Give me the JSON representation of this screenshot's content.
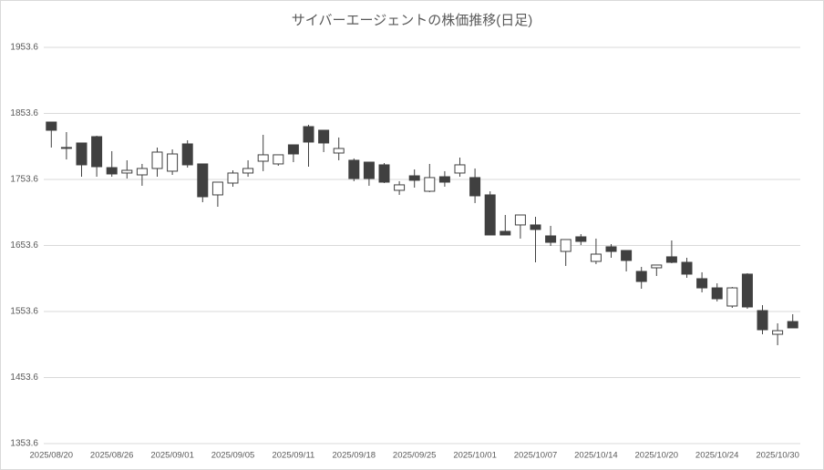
{
  "chart_data": {
    "type": "candlestick",
    "title": "サイバーエージェントの株価推移(日足)",
    "categories": [
      "2025/08/20",
      null,
      null,
      null,
      "2025/08/26",
      null,
      null,
      null,
      "2025/09/01",
      null,
      null,
      null,
      "2025/09/05",
      null,
      null,
      null,
      "2025/09/11",
      null,
      null,
      null,
      "2025/09/18",
      null,
      null,
      null,
      "2025/09/25",
      null,
      null,
      null,
      "2025/10/01",
      null,
      null,
      null,
      "2025/10/07",
      null,
      null,
      null,
      "2025/10/14",
      null,
      null,
      null,
      "2025/10/20",
      null,
      null,
      null,
      "2025/10/24",
      null,
      null,
      null,
      "2025/10/30",
      null
    ],
    "open": [
      1840.5,
      1802.0,
      1808.8,
      1818.4,
      1771.5,
      1763.3,
      1760.5,
      1770.2,
      1766.1,
      1807.4,
      1777.1,
      1730.2,
      1748.1,
      1763.3,
      1781.2,
      1777.1,
      1806.0,
      1833.6,
      1828.1,
      1793.6,
      1782.6,
      1779.8,
      1775.7,
      1737.1,
      1759.1,
      1735.7,
      1757.7,
      1763.3,
      1756.4,
      1730.2,
      1675.0,
      1684.7,
      1684.7,
      1668.1,
      1644.6,
      1666.7,
      1629.5,
      1651.6,
      1646.0,
      1614.3,
      1619.8,
      1636.4,
      1628.1,
      1603.3,
      1589.4,
      1561.9,
      1610.2,
      1555.0,
      1519.1,
      1538.4
    ],
    "high": [
      1840.5,
      1825.3,
      1808.8,
      1819.8,
      1796.4,
      1782.6,
      1777.1,
      1801.9,
      1799.1,
      1812.9,
      1777.1,
      1749.5,
      1767.4,
      1782.6,
      1821.2,
      1790.9,
      1806.0,
      1836.4,
      1828.1,
      1817.1,
      1785.4,
      1779.8,
      1778.5,
      1750.9,
      1768.8,
      1777.1,
      1766.1,
      1786.7,
      1770.2,
      1735.7,
      1699.8,
      1699.8,
      1697.1,
      1683.3,
      1662.6,
      1670.8,
      1664.0,
      1655.7,
      1646.0,
      1621.2,
      1624.0,
      1661.2,
      1635.0,
      1613.0,
      1596.3,
      1590.8,
      1611.6,
      1563.3,
      1535.7,
      1549.5
    ],
    "low": [
      1801.9,
      1783.9,
      1757.7,
      1757.7,
      1757.7,
      1755.0,
      1744.0,
      1757.7,
      1760.5,
      1771.5,
      1719.1,
      1712.2,
      1742.6,
      1757.7,
      1766.1,
      1774.3,
      1779.8,
      1772.9,
      1795.0,
      1782.6,
      1750.9,
      1744.0,
      1748.1,
      1730.2,
      1741.2,
      1734.3,
      1742.6,
      1757.7,
      1717.8,
      1669.5,
      1669.5,
      1664.0,
      1628.1,
      1652.9,
      1622.6,
      1654.3,
      1625.4,
      1635.0,
      1614.3,
      1588.1,
      1607.4,
      1626.7,
      1604.6,
      1582.6,
      1568.8,
      1559.1,
      1557.7,
      1519.1,
      1502.6,
      1528.8
    ],
    "close": [
      1828.1,
      1801.0,
      1775.7,
      1772.9,
      1761.9,
      1767.4,
      1770.2,
      1795.0,
      1792.2,
      1775.7,
      1727.4,
      1749.5,
      1763.3,
      1770.2,
      1790.9,
      1790.9,
      1792.2,
      1810.2,
      1808.8,
      1800.5,
      1755.0,
      1755.0,
      1749.5,
      1745.4,
      1752.3,
      1756.4,
      1749.5,
      1775.7,
      1728.8,
      1669.5,
      1669.5,
      1699.8,
      1677.8,
      1658.4,
      1662.6,
      1659.8,
      1640.5,
      1644.6,
      1630.9,
      1599.1,
      1624.0,
      1628.1,
      1610.2,
      1589.4,
      1572.9,
      1589.4,
      1560.5,
      1526.0,
      1524.6,
      1528.8
    ],
    "up_color": "#ffffff",
    "down_color": "#404040",
    "line_color": "#404040",
    "ylim": [
      1353.6,
      1953.6
    ],
    "yticks": [
      1353.6,
      1453.6,
      1553.6,
      1653.6,
      1753.6,
      1853.6,
      1953.6
    ],
    "grid": true
  }
}
